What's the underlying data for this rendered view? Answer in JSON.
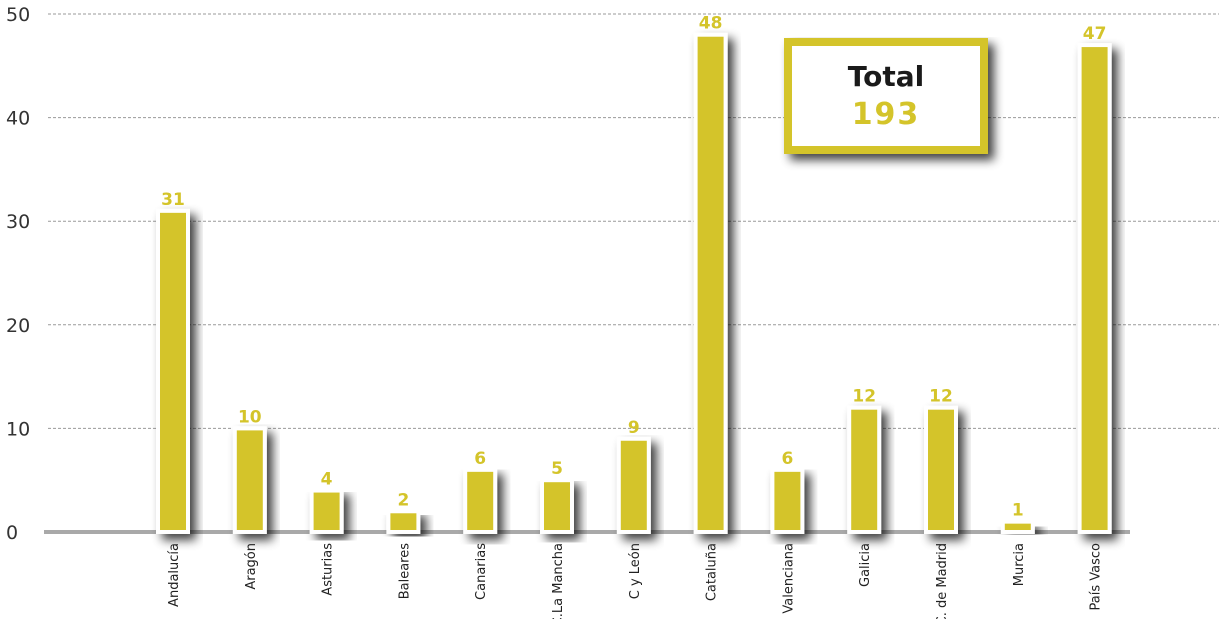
{
  "chart_data": {
    "type": "bar",
    "categories": [
      "Andalucía",
      "Aragón",
      "Asturias",
      "Baleares",
      "Canarias",
      "C.La Mancha",
      "C y León",
      "Cataluña",
      "C. Valenciana",
      "Galicia",
      "C. de Madrid",
      "Murcia",
      "País Vasco"
    ],
    "values": [
      31,
      10,
      4,
      2,
      6,
      5,
      9,
      48,
      6,
      12,
      12,
      1,
      47
    ],
    "value_labels": [
      "31",
      "10",
      "4",
      "2",
      "6",
      "5",
      "9",
      "48",
      "6",
      "12",
      "12",
      "1",
      "47"
    ],
    "yticks": [
      "0",
      "10",
      "20",
      "30",
      "40",
      "50"
    ],
    "ylim": [
      0,
      50
    ],
    "grid": "horizontal dashed",
    "bar_color": "#d4c42a",
    "total": {
      "label": "Total",
      "value": "193"
    }
  }
}
